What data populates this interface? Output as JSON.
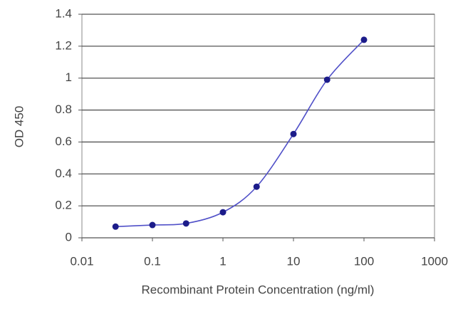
{
  "chart_data": {
    "type": "line",
    "x_label": "Recombinant Protein Concentration (ng/ml)",
    "y_label": "OD 450",
    "x": [
      0.03,
      0.1,
      0.3,
      1,
      3,
      10,
      30,
      100
    ],
    "series": [
      {
        "color": "#1c1c8a",
        "values": [
          0.07,
          0.08,
          0.09,
          0.16,
          0.32,
          0.65,
          0.99,
          1.24
        ]
      }
    ],
    "x_log": true,
    "xlim": [
      0.01,
      1000
    ],
    "xticks": [
      0.01,
      0.1,
      1,
      10,
      100,
      1000
    ],
    "ylim": [
      0,
      1.4
    ],
    "yticks": [
      0,
      0.2,
      0.4,
      0.6,
      0.8,
      1,
      1.2,
      1.4
    ],
    "grid": true
  }
}
